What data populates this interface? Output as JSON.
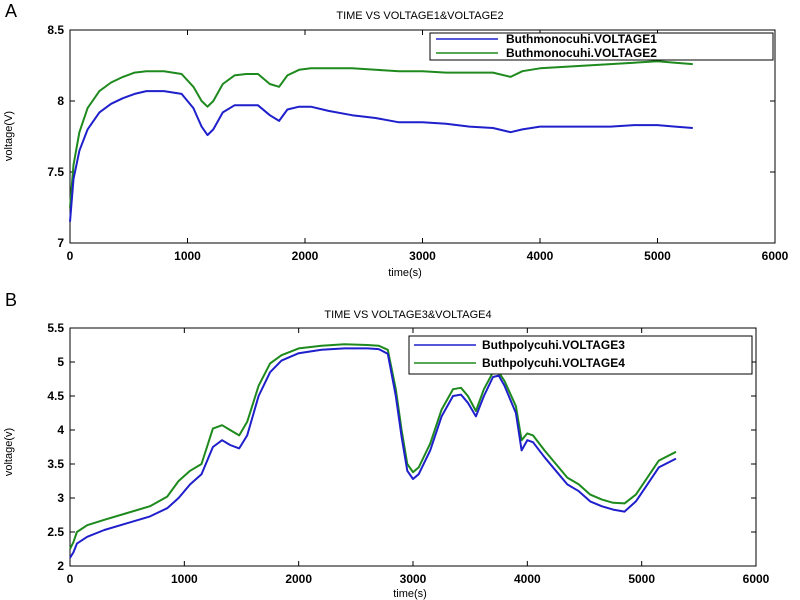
{
  "chart_data": [
    {
      "type": "line",
      "panel_label": "A",
      "title": "TIME VS VOLTAGE1&VOLTAGE2",
      "xlabel": "time(s)",
      "ylabel": "voltage(V)",
      "xlim": [
        0,
        6000
      ],
      "ylim": [
        7,
        8.5
      ],
      "xticks": [
        0,
        1000,
        2000,
        3000,
        4000,
        5000,
        6000
      ],
      "yticks": [
        7,
        7.5,
        8,
        8.5
      ],
      "ytick_labels": [
        "7",
        "7.5",
        "8",
        "8.5"
      ],
      "grid": false,
      "legend_position": "top-right",
      "series": [
        {
          "name": "Buthmonocuhi.VOLTAGE1",
          "color": "#1f1fcc",
          "x": [
            0,
            30,
            80,
            150,
            250,
            350,
            450,
            550,
            650,
            800,
            950,
            1050,
            1120,
            1170,
            1220,
            1300,
            1400,
            1500,
            1600,
            1700,
            1780,
            1850,
            1950,
            2050,
            2200,
            2400,
            2600,
            2800,
            3000,
            3200,
            3400,
            3600,
            3750,
            3850,
            4000,
            4200,
            4400,
            4600,
            4800,
            5000,
            5150,
            5300
          ],
          "y": [
            7.15,
            7.45,
            7.65,
            7.8,
            7.92,
            7.98,
            8.02,
            8.05,
            8.07,
            8.07,
            8.05,
            7.95,
            7.82,
            7.76,
            7.8,
            7.92,
            7.97,
            7.97,
            7.97,
            7.9,
            7.86,
            7.94,
            7.96,
            7.96,
            7.93,
            7.9,
            7.88,
            7.85,
            7.85,
            7.84,
            7.82,
            7.81,
            7.78,
            7.8,
            7.82,
            7.82,
            7.82,
            7.82,
            7.83,
            7.83,
            7.82,
            7.81
          ]
        },
        {
          "name": "Buthmonocuhi.VOLTAGE2",
          "color": "#1e8a1e",
          "x": [
            0,
            30,
            80,
            150,
            250,
            350,
            450,
            550,
            650,
            800,
            950,
            1050,
            1120,
            1170,
            1220,
            1300,
            1400,
            1500,
            1600,
            1700,
            1780,
            1850,
            1950,
            2050,
            2200,
            2400,
            2600,
            2800,
            3000,
            3200,
            3400,
            3600,
            3750,
            3850,
            4000,
            4200,
            4400,
            4600,
            4800,
            5000,
            5150,
            5300
          ],
          "y": [
            7.25,
            7.55,
            7.78,
            7.95,
            8.07,
            8.13,
            8.17,
            8.2,
            8.21,
            8.21,
            8.19,
            8.1,
            8.0,
            7.96,
            8.0,
            8.12,
            8.18,
            8.19,
            8.19,
            8.12,
            8.1,
            8.18,
            8.22,
            8.23,
            8.23,
            8.23,
            8.22,
            8.21,
            8.21,
            8.2,
            8.2,
            8.2,
            8.17,
            8.21,
            8.23,
            8.24,
            8.25,
            8.26,
            8.27,
            8.28,
            8.27,
            8.26
          ]
        }
      ]
    },
    {
      "type": "line",
      "panel_label": "B",
      "title": "TIME VS VOLTAGE3&VOLTAGE4",
      "xlabel": "time(s)",
      "ylabel": "voltage(v)",
      "xlim": [
        0,
        6000
      ],
      "ylim": [
        2,
        5.5
      ],
      "xticks": [
        0,
        1000,
        2000,
        3000,
        4000,
        5000,
        6000
      ],
      "yticks": [
        2,
        2.5,
        3,
        3.5,
        4,
        4.5,
        5,
        5.5
      ],
      "ytick_labels": [
        "2",
        "2.5",
        "3",
        "3.5",
        "4",
        "4.5",
        "5",
        "5.5"
      ],
      "grid": false,
      "legend_position": "top-right",
      "series": [
        {
          "name": "Buthpolycuhi.VOLTAGE3",
          "color": "#1f1fcc",
          "x": [
            0,
            30,
            60,
            150,
            300,
            500,
            700,
            850,
            950,
            1050,
            1150,
            1250,
            1330,
            1400,
            1480,
            1550,
            1650,
            1750,
            1850,
            2000,
            2200,
            2400,
            2600,
            2700,
            2780,
            2850,
            2900,
            2950,
            3000,
            3050,
            3150,
            3250,
            3350,
            3420,
            3480,
            3550,
            3620,
            3700,
            3750,
            3800,
            3900,
            3950,
            4000,
            4050,
            4150,
            4250,
            4350,
            4450,
            4550,
            4650,
            4750,
            4850,
            4950,
            5050,
            5150,
            5300
          ],
          "y": [
            2.12,
            2.2,
            2.33,
            2.43,
            2.53,
            2.63,
            2.73,
            2.85,
            3.0,
            3.2,
            3.35,
            3.75,
            3.85,
            3.78,
            3.73,
            3.92,
            4.5,
            4.85,
            5.02,
            5.13,
            5.18,
            5.2,
            5.2,
            5.19,
            5.12,
            4.5,
            3.9,
            3.4,
            3.28,
            3.35,
            3.7,
            4.2,
            4.5,
            4.52,
            4.4,
            4.2,
            4.5,
            4.78,
            4.8,
            4.65,
            4.25,
            3.7,
            3.85,
            3.82,
            3.6,
            3.4,
            3.2,
            3.1,
            2.95,
            2.88,
            2.83,
            2.8,
            2.95,
            3.2,
            3.45,
            3.58
          ]
        },
        {
          "name": "Buthpolycuhi.VOLTAGE4",
          "color": "#1e8a1e",
          "x": [
            0,
            30,
            60,
            150,
            300,
            500,
            700,
            850,
            950,
            1050,
            1150,
            1250,
            1330,
            1400,
            1480,
            1550,
            1650,
            1750,
            1850,
            2000,
            2200,
            2400,
            2600,
            2700,
            2780,
            2850,
            2900,
            2950,
            3000,
            3050,
            3150,
            3250,
            3350,
            3420,
            3480,
            3550,
            3620,
            3700,
            3750,
            3800,
            3900,
            3950,
            4000,
            4050,
            4150,
            4250,
            4350,
            4450,
            4550,
            4650,
            4750,
            4850,
            4950,
            5050,
            5150,
            5300
          ],
          "y": [
            2.25,
            2.35,
            2.5,
            2.6,
            2.68,
            2.78,
            2.88,
            3.02,
            3.25,
            3.4,
            3.5,
            4.02,
            4.07,
            4.0,
            3.92,
            4.12,
            4.65,
            4.98,
            5.1,
            5.2,
            5.24,
            5.26,
            5.25,
            5.24,
            5.18,
            4.6,
            4.0,
            3.5,
            3.38,
            3.45,
            3.8,
            4.3,
            4.6,
            4.62,
            4.5,
            4.28,
            4.6,
            4.85,
            4.85,
            4.72,
            4.35,
            3.85,
            3.95,
            3.92,
            3.7,
            3.5,
            3.3,
            3.2,
            3.05,
            2.98,
            2.93,
            2.92,
            3.05,
            3.3,
            3.55,
            3.68
          ]
        }
      ]
    }
  ]
}
